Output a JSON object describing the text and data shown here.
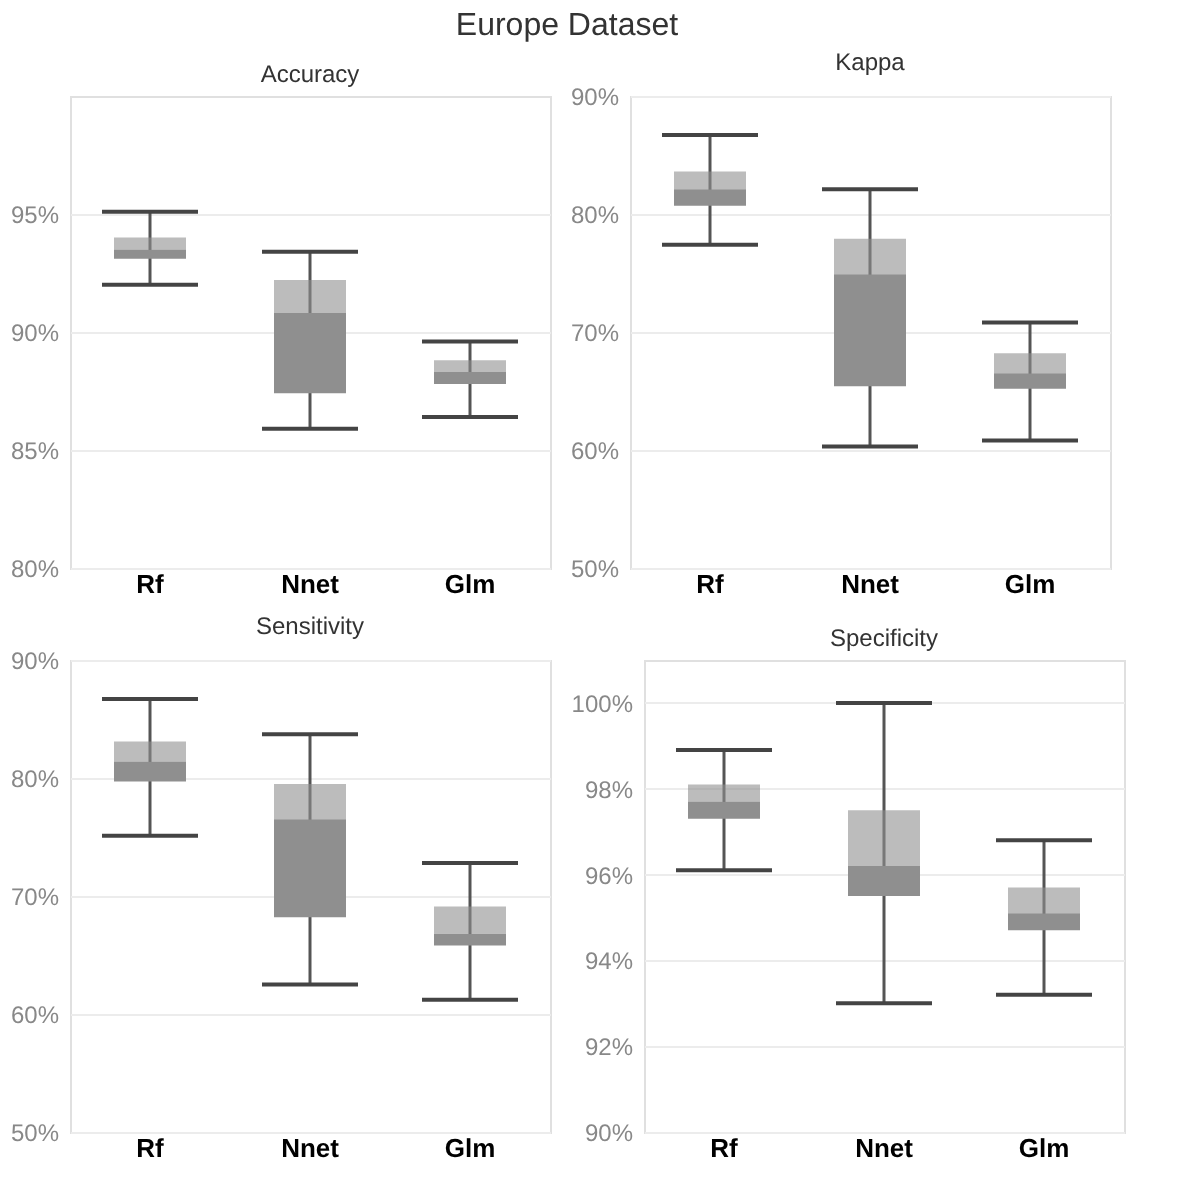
{
  "chart_data": [
    {
      "type": "box",
      "title": "Accuracy",
      "annotations": [
        "Europe Dataset"
      ],
      "categories": [
        "Rf",
        "Nnet",
        "Glm"
      ],
      "ylim": [
        80,
        100
      ],
      "yticks": [
        {
          "value": 80,
          "label": "80%"
        },
        {
          "value": 85,
          "label": "85%"
        },
        {
          "value": 90,
          "label": "90%"
        },
        {
          "value": 95,
          "label": "95%"
        }
      ],
      "grid": "y",
      "series": [
        {
          "color": "#8f8f8f",
          "boxes": [
            {
              "low": 92.0,
              "q1": 93.1,
              "median": 93.5,
              "q3": 94.0,
              "high": 95.1
            },
            {
              "low": 85.9,
              "q1": 87.4,
              "median": 90.8,
              "q3": 92.2,
              "high": 93.4
            },
            {
              "low": 86.4,
              "q1": 87.8,
              "median": 88.3,
              "q3": 88.8,
              "high": 89.6
            }
          ]
        }
      ]
    },
    {
      "type": "box",
      "title": "Kappa",
      "categories": [
        "Rf",
        "Nnet",
        "Glm"
      ],
      "ylim": [
        50,
        90
      ],
      "yticks": [
        {
          "value": 50,
          "label": "50%"
        },
        {
          "value": 60,
          "label": "60%"
        },
        {
          "value": 70,
          "label": "70%"
        },
        {
          "value": 80,
          "label": "80%"
        },
        {
          "value": 90,
          "label": "90%"
        }
      ],
      "grid": "y",
      "series": [
        {
          "color": "#8f8f8f",
          "boxes": [
            {
              "low": 77.4,
              "q1": 80.7,
              "median": 82.1,
              "q3": 83.6,
              "high": 86.7
            },
            {
              "low": 60.3,
              "q1": 65.4,
              "median": 74.9,
              "q3": 77.9,
              "high": 82.1
            },
            {
              "low": 60.8,
              "q1": 65.2,
              "median": 66.5,
              "q3": 68.2,
              "high": 70.8
            }
          ]
        }
      ]
    },
    {
      "type": "box",
      "title": "Sensitivity",
      "categories": [
        "Rf",
        "Nnet",
        "Glm"
      ],
      "ylim": [
        50,
        90
      ],
      "yticks": [
        {
          "value": 50,
          "label": "50%"
        },
        {
          "value": 60,
          "label": "60%"
        },
        {
          "value": 70,
          "label": "70%"
        },
        {
          "value": 80,
          "label": "80%"
        },
        {
          "value": 90,
          "label": "90%"
        }
      ],
      "grid": "y",
      "series": [
        {
          "color": "#8f8f8f",
          "boxes": [
            {
              "low": 75.1,
              "q1": 79.7,
              "median": 81.4,
              "q3": 83.1,
              "high": 86.7
            },
            {
              "low": 62.5,
              "q1": 68.2,
              "median": 76.5,
              "q3": 79.5,
              "high": 83.7
            },
            {
              "low": 61.2,
              "q1": 65.8,
              "median": 66.8,
              "q3": 69.1,
              "high": 72.8
            }
          ]
        }
      ]
    },
    {
      "type": "box",
      "title": "Specificity",
      "categories": [
        "Rf",
        "Nnet",
        "Glm"
      ],
      "ylim": [
        90,
        101
      ],
      "yticks": [
        {
          "value": 90,
          "label": "90%"
        },
        {
          "value": 92,
          "label": "92%"
        },
        {
          "value": 94,
          "label": "94%"
        },
        {
          "value": 96,
          "label": "96%"
        },
        {
          "value": 98,
          "label": "98%"
        },
        {
          "value": 100,
          "label": "100%"
        }
      ],
      "grid": "y",
      "series": [
        {
          "color": "#8f8f8f",
          "boxes": [
            {
              "low": 96.1,
              "q1": 97.3,
              "median": 97.7,
              "q3": 98.1,
              "high": 98.9
            },
            {
              "low": 93.0,
              "q1": 95.5,
              "median": 96.2,
              "q3": 97.5,
              "high": 100.0
            },
            {
              "low": 93.2,
              "q1": 94.7,
              "median": 95.1,
              "q3": 95.7,
              "high": 96.8
            }
          ]
        }
      ]
    }
  ]
}
